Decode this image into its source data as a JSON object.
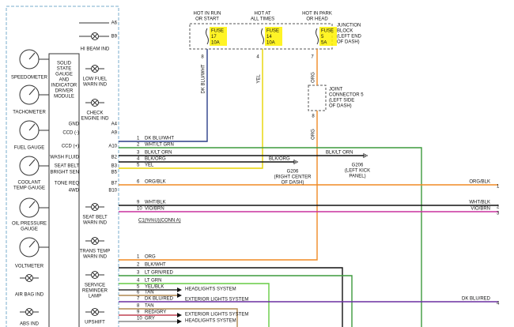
{
  "junction_block": {
    "label": [
      "JUNCTION",
      "BLOCK",
      "(LEFT END",
      "OF DASH)"
    ],
    "fuses": [
      {
        "feed": [
          "HOT IN RUN",
          "OR START"
        ],
        "lines": [
          "FUSE",
          "17",
          "10A"
        ],
        "pin": "8",
        "wire": "DK BLU/WHT"
      },
      {
        "feed": [
          "HOT AT",
          "ALL TIMES"
        ],
        "lines": [
          "FUSE",
          "14",
          "10A"
        ],
        "pin": "4",
        "wire": "YEL"
      },
      {
        "feed": [
          "HOT IN PARK",
          "OR HEAD"
        ],
        "lines": [
          "FUSE",
          "5",
          "5A"
        ],
        "pin": "7",
        "wire": "ORG"
      }
    ]
  },
  "joint_connector": {
    "label": [
      "JOINT",
      "CONNECTOR 5",
      "(LEFT SIDE",
      "OF DASH)"
    ],
    "pin": "8",
    "wire": "ORG"
  },
  "cluster": {
    "hi_beam": {
      "pins": [
        "A6",
        "B9"
      ],
      "label": "HI BEAM IND"
    },
    "module": [
      "SOLID",
      "STATE",
      "GAUGE",
      "AND",
      "INDICATOR",
      "DRIVER",
      "MODULE"
    ],
    "gauges": [
      [
        "SPEEDOMETER"
      ],
      [
        "TACHOMETER"
      ],
      [
        "FUEL GAUGE"
      ],
      [
        "COOLANT",
        "TEMP GAUGE"
      ],
      [
        "OIL PRESSURE",
        "GAUGE"
      ],
      [
        "VOLTMETER"
      ]
    ],
    "left_lamps": [
      "AIR BAG IND",
      "ABS IND"
    ],
    "lamps": [
      [
        "LOW FUEL",
        "WARN IND"
      ],
      [
        "CHECK",
        "ENGINE IND"
      ],
      [
        "SEAT BELT",
        "WARN IND"
      ],
      [
        "TRANS TEMP",
        "WARN IND"
      ],
      [
        "SERVICE",
        "REMINDER",
        "LAMP"
      ],
      [
        "UPSHIFT"
      ]
    ],
    "pins": [
      {
        "name": "GND",
        "pin": "A4"
      },
      {
        "name": "CCD (-)",
        "pin": "A9"
      },
      {
        "name": "CCD (+)",
        "pin": "A10"
      },
      {
        "name": "WASH FLUID",
        "pin": "B2"
      },
      {
        "name": "SEAT BELT",
        "pin": "B3"
      },
      {
        "name": "BRIGHT SEN",
        "pin": "B5"
      },
      {
        "name": "TONE REQ",
        "pin": "B7"
      },
      {
        "name": "4WD",
        "pin": "B10"
      }
    ]
  },
  "connector_a": {
    "label": "C1(%%U)(CONN A)",
    "wires": [
      {
        "n": "1",
        "color": "DK BLU/WHT"
      },
      {
        "n": "2",
        "color": "WHT/LT GRN"
      },
      {
        "n": "3",
        "color": "BLK/LT ORN"
      },
      {
        "n": "4",
        "color": "BLK/ORG"
      },
      {
        "n": "5",
        "color": "YEL"
      },
      {
        "n": "6",
        "color": "ORG/BLK"
      },
      {
        "n": "9",
        "color": "WHT/BLK"
      },
      {
        "n": "10",
        "color": "VIO/BRN"
      }
    ]
  },
  "connector_b": {
    "wires": [
      {
        "n": "1",
        "color": "ORG"
      },
      {
        "n": "2",
        "color": "BLK/WHT"
      },
      {
        "n": "3",
        "color": "LT GRN/RED"
      },
      {
        "n": "4",
        "color": "LT GRN"
      },
      {
        "n": "5",
        "color": "YEL/BLK"
      },
      {
        "n": "6",
        "color": "TAN"
      },
      {
        "n": "7",
        "color": "DK BLU/RED"
      },
      {
        "n": "8",
        "color": "TAN"
      },
      {
        "n": "9",
        "color": "RED/GRY"
      },
      {
        "n": "10",
        "color": "GRY"
      }
    ]
  },
  "destinations": [
    "HEADLIGHTS SYSTEM",
    "EXTERIOR LIGHTS SYSTEM",
    "EXTERIOR LIGHTS SYSTEM",
    "HEADLIGHTS SYSTEM"
  ],
  "grounds": [
    {
      "wire": "BLK/LT ORN",
      "label": [
        "G206",
        "(LEFT KICK",
        "PANEL)"
      ]
    },
    {
      "wire": "BLK/ORG",
      "label": [
        "G206",
        "(RIGHT CENTER",
        "OF DASH)"
      ]
    }
  ],
  "right_end": [
    {
      "wire": "ORG/BLK",
      "pin": "1"
    },
    {
      "wire": "WHT/BLK",
      "pin": "2"
    },
    {
      "wire": "VIO/BRN",
      "pin": "3"
    },
    {
      "wire": "DK BLU/RED",
      "pin": "4"
    }
  ]
}
